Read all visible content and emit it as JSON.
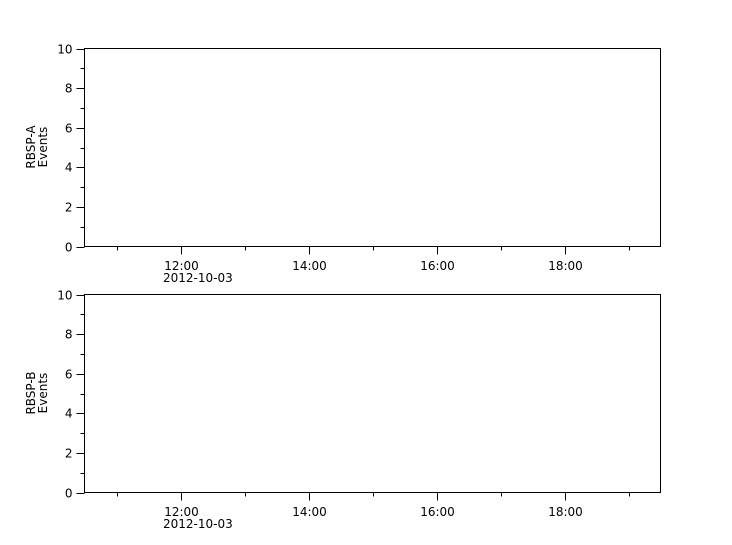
{
  "chart_data": [
    {
      "type": "line",
      "ylabel": [
        "RBSP-A",
        "Events"
      ],
      "ylim": [
        0,
        10
      ],
      "yticks": [
        0,
        2,
        4,
        6,
        8,
        10
      ],
      "yminor": [
        1,
        3,
        5,
        7,
        9
      ],
      "xlim": [
        "2012-10-03T10:30",
        "2012-10-03T19:30"
      ],
      "xticks": [
        "12:00",
        "14:00",
        "16:00",
        "18:00"
      ],
      "xtick_hours": [
        12,
        14,
        16,
        18
      ],
      "xminor_hours": [
        11,
        13,
        15,
        17,
        19
      ],
      "date_label": "2012-10-03",
      "series": [],
      "grid": false
    },
    {
      "type": "line",
      "ylabel": [
        "RBSP-B",
        "Events"
      ],
      "ylim": [
        0,
        10
      ],
      "yticks": [
        0,
        2,
        4,
        6,
        8,
        10
      ],
      "yminor": [
        1,
        3,
        5,
        7,
        9
      ],
      "xlim": [
        "2012-10-03T10:30",
        "2012-10-03T19:30"
      ],
      "xticks": [
        "12:00",
        "14:00",
        "16:00",
        "18:00"
      ],
      "xtick_hours": [
        12,
        14,
        16,
        18
      ],
      "xminor_hours": [
        11,
        13,
        15,
        17,
        19
      ],
      "date_label": "2012-10-03",
      "series": [],
      "grid": false
    }
  ]
}
